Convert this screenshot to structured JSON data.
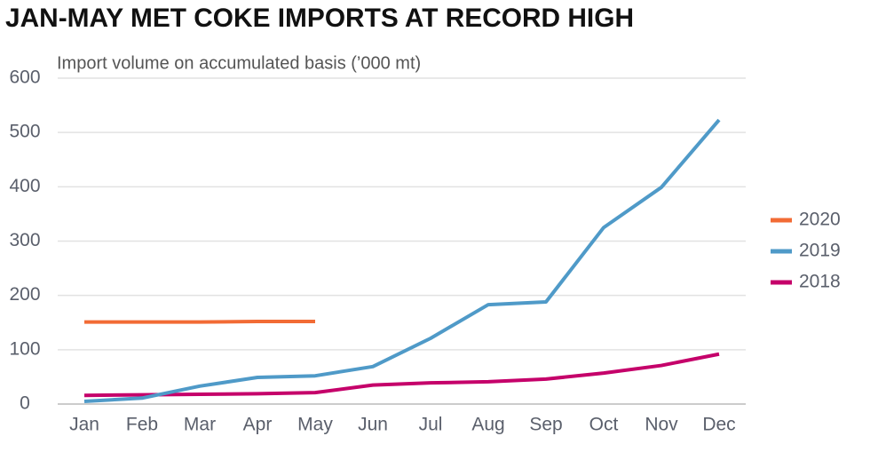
{
  "chart_data": {
    "type": "line",
    "title": "JAN-MAY MET COKE IMPORTS AT RECORD HIGH",
    "subtitle": "Import volume on accumulated basis (’000 mt)",
    "categories": [
      "Jan",
      "Feb",
      "Mar",
      "Apr",
      "May",
      "Jun",
      "Jul",
      "Aug",
      "Sep",
      "Oct",
      "Nov",
      "Dec"
    ],
    "series": [
      {
        "name": "2020",
        "color": "#f26b35",
        "values": [
          151,
          151,
          151,
          152,
          152,
          null,
          null,
          null,
          null,
          null,
          null,
          null
        ]
      },
      {
        "name": "2019",
        "color": "#4f9ac8",
        "values": [
          5,
          11,
          33,
          49,
          52,
          69,
          121,
          183,
          188,
          325,
          399,
          523
        ]
      },
      {
        "name": "2018",
        "color": "#c5006a",
        "values": [
          16,
          17,
          18,
          19,
          21,
          35,
          39,
          41,
          46,
          57,
          71,
          92
        ]
      }
    ],
    "ylim": [
      0,
      600
    ],
    "yticks": [
      0,
      100,
      200,
      300,
      400,
      500,
      600
    ],
    "grid": true,
    "legend": "right"
  }
}
